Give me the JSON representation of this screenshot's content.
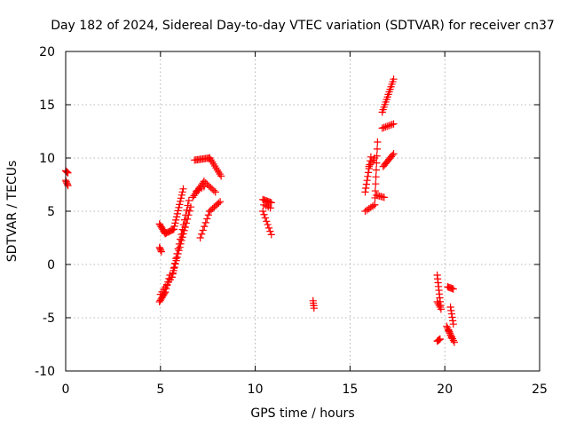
{
  "chart_data": {
    "type": "scatter",
    "title": "Day 182 of 2024, Sidereal Day-to-day VTEC variation (SDTVAR) for receiver cn37",
    "xlabel": "GPS time / hours",
    "ylabel": "SDTVAR / TECUs",
    "xlim": [
      0,
      25
    ],
    "ylim": [
      -10,
      20
    ],
    "xticks": [
      0,
      5,
      10,
      15,
      20,
      25
    ],
    "yticks": [
      -10,
      -5,
      0,
      5,
      10,
      15,
      20
    ],
    "grid": true,
    "marker": "+",
    "color": "#ff0000",
    "series": [
      {
        "name": "SDTVAR",
        "segments": [
          {
            "from": [
              0.0,
              8.8
            ],
            "to": [
              0.12,
              8.6
            ],
            "n": 4
          },
          {
            "from": [
              0.0,
              7.9
            ],
            "to": [
              0.12,
              7.4
            ],
            "n": 5
          },
          {
            "from": [
              4.95,
              1.6
            ],
            "to": [
              5.05,
              1.2
            ],
            "n": 4
          },
          {
            "from": [
              4.95,
              3.8
            ],
            "to": [
              5.25,
              2.9
            ],
            "n": 8
          },
          {
            "from": [
              5.25,
              2.9
            ],
            "to": [
              5.7,
              3.3
            ],
            "n": 8
          },
          {
            "from": [
              5.7,
              3.3
            ],
            "to": [
              6.2,
              7.1
            ],
            "n": 14
          },
          {
            "from": [
              4.95,
              -3.5
            ],
            "to": [
              5.25,
              -2.6
            ],
            "n": 8
          },
          {
            "from": [
              5.25,
              -2.6
            ],
            "to": [
              5.5,
              -1.0
            ],
            "n": 6
          },
          {
            "from": [
              5.0,
              -2.8
            ],
            "to": [
              5.6,
              -1.2
            ],
            "n": 8
          },
          {
            "from": [
              5.6,
              -1.2
            ],
            "to": [
              6.3,
              3.5
            ],
            "n": 16
          },
          {
            "from": [
              5.65,
              -0.8
            ],
            "to": [
              6.5,
              6.0
            ],
            "n": 16
          },
          {
            "from": [
              6.3,
              3.5
            ],
            "to": [
              6.6,
              5.4
            ],
            "n": 6
          },
          {
            "from": [
              6.7,
              6.3
            ],
            "to": [
              7.3,
              7.8
            ],
            "n": 10
          },
          {
            "from": [
              7.3,
              7.8
            ],
            "to": [
              7.9,
              6.8
            ],
            "n": 8
          },
          {
            "from": [
              6.8,
              9.8
            ],
            "to": [
              7.6,
              10.0
            ],
            "n": 12
          },
          {
            "from": [
              7.6,
              10.0
            ],
            "to": [
              8.2,
              8.3
            ],
            "n": 10
          },
          {
            "from": [
              7.1,
              2.5
            ],
            "to": [
              7.6,
              5.0
            ],
            "n": 8
          },
          {
            "from": [
              7.6,
              5.0
            ],
            "to": [
              8.15,
              5.9
            ],
            "n": 8
          },
          {
            "from": [
              6.9,
              6.9
            ],
            "to": [
              7.3,
              7.3
            ],
            "n": 4
          },
          {
            "from": [
              10.4,
              6.1
            ],
            "to": [
              10.85,
              5.8
            ],
            "n": 8
          },
          {
            "from": [
              10.4,
              5.0
            ],
            "to": [
              10.85,
              2.8
            ],
            "n": 8
          },
          {
            "from": [
              10.45,
              5.6
            ],
            "to": [
              10.8,
              5.3
            ],
            "n": 4
          },
          {
            "from": [
              13.05,
              -3.4
            ],
            "to": [
              13.1,
              -4.1
            ],
            "n": 4
          },
          {
            "from": [
              15.8,
              6.8
            ],
            "to": [
              16.1,
              10.1
            ],
            "n": 10
          },
          {
            "from": [
              15.8,
              5.0
            ],
            "to": [
              16.3,
              5.6
            ],
            "n": 6
          },
          {
            "from": [
              16.3,
              5.6
            ],
            "to": [
              16.45,
              11.5
            ],
            "n": 10
          },
          {
            "from": [
              16.4,
              6.5
            ],
            "to": [
              16.8,
              6.3
            ],
            "n": 6
          },
          {
            "from": [
              16.75,
              9.2
            ],
            "to": [
              17.3,
              10.4
            ],
            "n": 10
          },
          {
            "from": [
              16.7,
              12.8
            ],
            "to": [
              17.3,
              13.2
            ],
            "n": 8
          },
          {
            "from": [
              16.7,
              14.3
            ],
            "to": [
              17.3,
              17.4
            ],
            "n": 14
          },
          {
            "from": [
              16.0,
              9.2
            ],
            "to": [
              16.3,
              10.0
            ],
            "n": 5
          },
          {
            "from": [
              19.6,
              -7.2
            ],
            "to": [
              19.75,
              -7.0
            ],
            "n": 5
          },
          {
            "from": [
              19.6,
              -1.0
            ],
            "to": [
              19.8,
              -4.2
            ],
            "n": 10
          },
          {
            "from": [
              19.6,
              -3.5
            ],
            "to": [
              19.75,
              -4.0
            ],
            "n": 4
          },
          {
            "from": [
              20.15,
              -2.1
            ],
            "to": [
              20.45,
              -2.3
            ],
            "n": 6
          },
          {
            "from": [
              20.1,
              -5.8
            ],
            "to": [
              20.5,
              -7.3
            ],
            "n": 10
          },
          {
            "from": [
              20.3,
              -4.0
            ],
            "to": [
              20.45,
              -5.6
            ],
            "n": 6
          },
          {
            "from": [
              20.2,
              -6.2
            ],
            "to": [
              20.35,
              -6.9
            ],
            "n": 4
          }
        ]
      }
    ]
  }
}
